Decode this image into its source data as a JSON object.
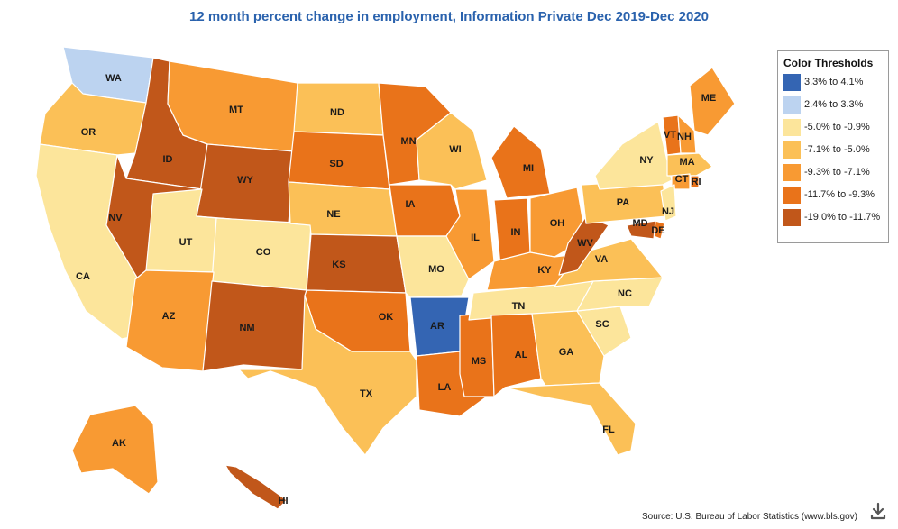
{
  "title": "12 month percent change in employment, Information Private Dec 2019-Dec 2020",
  "legend": {
    "title": "Color Thresholds",
    "items": [
      {
        "label": "3.3% to 4.1%",
        "color": "#3465b3"
      },
      {
        "label": "2.4% to 3.3%",
        "color": "#bcd3f0"
      },
      {
        "label": "-5.0% to -0.9%",
        "color": "#fce59b"
      },
      {
        "label": "-7.1% to -5.0%",
        "color": "#fbc057"
      },
      {
        "label": "-9.3% to -7.1%",
        "color": "#f89a33"
      },
      {
        "label": "-11.7% to -9.3%",
        "color": "#e9731a"
      },
      {
        "label": "-19.0% to -11.7%",
        "color": "#c1571a"
      }
    ]
  },
  "states": [
    {
      "abbr": "WA",
      "class": 1
    },
    {
      "abbr": "OR",
      "class": 3
    },
    {
      "abbr": "CA",
      "class": 2
    },
    {
      "abbr": "ID",
      "class": 6
    },
    {
      "abbr": "NV",
      "class": 6
    },
    {
      "abbr": "MT",
      "class": 4
    },
    {
      "abbr": "WY",
      "class": 6
    },
    {
      "abbr": "UT",
      "class": 2
    },
    {
      "abbr": "CO",
      "class": 2
    },
    {
      "abbr": "AZ",
      "class": 4
    },
    {
      "abbr": "NM",
      "class": 6
    },
    {
      "abbr": "ND",
      "class": 3
    },
    {
      "abbr": "SD",
      "class": 5
    },
    {
      "abbr": "NE",
      "class": 3
    },
    {
      "abbr": "KS",
      "class": 6
    },
    {
      "abbr": "OK",
      "class": 5
    },
    {
      "abbr": "TX",
      "class": 3
    },
    {
      "abbr": "MN",
      "class": 5
    },
    {
      "abbr": "IA",
      "class": 5
    },
    {
      "abbr": "MO",
      "class": 2
    },
    {
      "abbr": "AR",
      "class": 0
    },
    {
      "abbr": "LA",
      "class": 5
    },
    {
      "abbr": "WI",
      "class": 3
    },
    {
      "abbr": "IL",
      "class": 4
    },
    {
      "abbr": "MS",
      "class": 5
    },
    {
      "abbr": "MI",
      "class": 5
    },
    {
      "abbr": "IN",
      "class": 5
    },
    {
      "abbr": "OH",
      "class": 4
    },
    {
      "abbr": "KY",
      "class": 4
    },
    {
      "abbr": "TN",
      "class": 2
    },
    {
      "abbr": "AL",
      "class": 5
    },
    {
      "abbr": "GA",
      "class": 3
    },
    {
      "abbr": "FL",
      "class": 3
    },
    {
      "abbr": "SC",
      "class": 2
    },
    {
      "abbr": "NC",
      "class": 2
    },
    {
      "abbr": "VA",
      "class": 3
    },
    {
      "abbr": "WV",
      "class": 6
    },
    {
      "abbr": "PA",
      "class": 3
    },
    {
      "abbr": "NY",
      "class": 2
    },
    {
      "abbr": "ME",
      "class": 4
    },
    {
      "abbr": "VT",
      "class": 5
    },
    {
      "abbr": "NH",
      "class": 4
    },
    {
      "abbr": "MA",
      "class": 3
    },
    {
      "abbr": "CT",
      "class": 4
    },
    {
      "abbr": "RI",
      "class": 5
    },
    {
      "abbr": "NJ",
      "class": 2
    },
    {
      "abbr": "DE",
      "class": 5
    },
    {
      "abbr": "MD",
      "class": 6
    },
    {
      "abbr": "AK",
      "class": 4
    },
    {
      "abbr": "HI",
      "class": 6
    }
  ],
  "source": "Source: U.S. Bureau of Labor Statistics (www.bls.gov)",
  "download_icon": "download-icon"
}
